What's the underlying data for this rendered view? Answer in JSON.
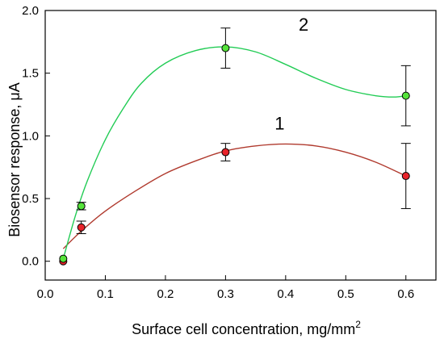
{
  "chart_data": {
    "type": "scatter",
    "xlabel": "Surface cell concentration, mg/mm",
    "xlabel_superscript": "2",
    "ylabel": "Biosensor response, μA",
    "xlim": [
      0.0,
      0.65
    ],
    "ylim": [
      -0.15,
      2.0
    ],
    "x_ticks": [
      "0.0",
      "0.1",
      "0.2",
      "0.3",
      "0.4",
      "0.5",
      "0.6"
    ],
    "y_ticks": [
      "0.0",
      "0.5",
      "1.0",
      "1.5",
      "2.0"
    ],
    "grid": false,
    "series": [
      {
        "label": "1",
        "marker_color": "#e8232a",
        "line_color": "#b03a2e",
        "points": [
          {
            "x": 0.03,
            "y": 0.0,
            "err": 0.0
          },
          {
            "x": 0.06,
            "y": 0.27,
            "err": 0.05
          },
          {
            "x": 0.3,
            "y": 0.87,
            "err": 0.07
          },
          {
            "x": 0.6,
            "y": 0.68,
            "err": 0.26
          }
        ],
        "curve": [
          [
            0.03,
            0.1
          ],
          [
            0.06,
            0.24
          ],
          [
            0.1,
            0.4
          ],
          [
            0.15,
            0.56
          ],
          [
            0.2,
            0.7
          ],
          [
            0.25,
            0.8
          ],
          [
            0.3,
            0.88
          ],
          [
            0.35,
            0.92
          ],
          [
            0.4,
            0.935
          ],
          [
            0.45,
            0.92
          ],
          [
            0.5,
            0.87
          ],
          [
            0.55,
            0.79
          ],
          [
            0.6,
            0.68
          ]
        ]
      },
      {
        "label": "2",
        "marker_color": "#55e33a",
        "line_color": "#22cc55",
        "points": [
          {
            "x": 0.03,
            "y": 0.02,
            "err": 0.0
          },
          {
            "x": 0.06,
            "y": 0.44,
            "err": 0.03
          },
          {
            "x": 0.3,
            "y": 1.7,
            "err": 0.16
          },
          {
            "x": 0.6,
            "y": 1.32,
            "err": 0.24
          }
        ],
        "curve": [
          [
            0.03,
            0.02
          ],
          [
            0.05,
            0.36
          ],
          [
            0.07,
            0.64
          ],
          [
            0.1,
            0.97
          ],
          [
            0.13,
            1.22
          ],
          [
            0.16,
            1.42
          ],
          [
            0.2,
            1.58
          ],
          [
            0.25,
            1.68
          ],
          [
            0.3,
            1.71
          ],
          [
            0.35,
            1.67
          ],
          [
            0.4,
            1.57
          ],
          [
            0.45,
            1.46
          ],
          [
            0.5,
            1.37
          ],
          [
            0.55,
            1.32
          ],
          [
            0.58,
            1.31
          ],
          [
            0.6,
            1.32
          ]
        ]
      }
    ]
  }
}
